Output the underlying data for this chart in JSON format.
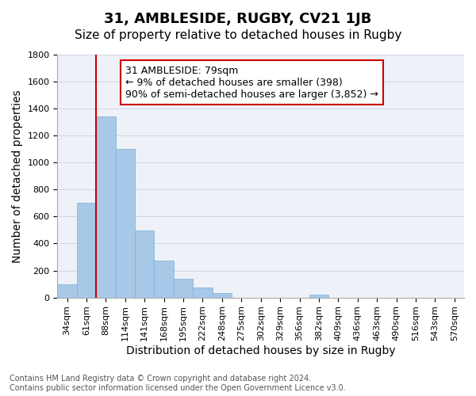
{
  "title": "31, AMBLESIDE, RUGBY, CV21 1JB",
  "subtitle": "Size of property relative to detached houses in Rugby",
  "xlabel": "Distribution of detached houses by size in Rugby",
  "ylabel": "Number of detached properties",
  "bar_labels": [
    "34sqm",
    "61sqm",
    "88sqm",
    "114sqm",
    "141sqm",
    "168sqm",
    "195sqm",
    "222sqm",
    "248sqm",
    "275sqm",
    "302sqm",
    "329sqm",
    "356sqm",
    "382sqm",
    "409sqm",
    "436sqm",
    "463sqm",
    "490sqm",
    "516sqm",
    "543sqm",
    "570sqm"
  ],
  "bar_values": [
    100,
    700,
    1340,
    1100,
    495,
    275,
    140,
    72,
    30,
    0,
    0,
    0,
    0,
    20,
    0,
    0,
    0,
    0,
    0,
    0,
    0
  ],
  "bar_color": "#a8c8e8",
  "bar_edge_color": "#7aafd4",
  "vline_x_index": 2,
  "vline_color": "#cc0000",
  "annotation_line1": "31 AMBLESIDE: 79sqm",
  "annotation_line2": "← 9% of detached houses are smaller (398)",
  "annotation_line3": "90% of semi-detached houses are larger (3,852) →",
  "annotation_box_color": "#ffffff",
  "annotation_box_edge": "#cc0000",
  "ylim": [
    0,
    1800
  ],
  "yticks": [
    0,
    200,
    400,
    600,
    800,
    1000,
    1200,
    1400,
    1600,
    1800
  ],
  "grid_color": "#d0d8e8",
  "bg_color": "#eef2f8",
  "footer": "Contains HM Land Registry data © Crown copyright and database right 2024.\nContains public sector information licensed under the Open Government Licence v3.0.",
  "title_fontsize": 13,
  "subtitle_fontsize": 11,
  "xlabel_fontsize": 10,
  "ylabel_fontsize": 10,
  "tick_fontsize": 8,
  "annotation_fontsize": 9,
  "footer_fontsize": 7
}
